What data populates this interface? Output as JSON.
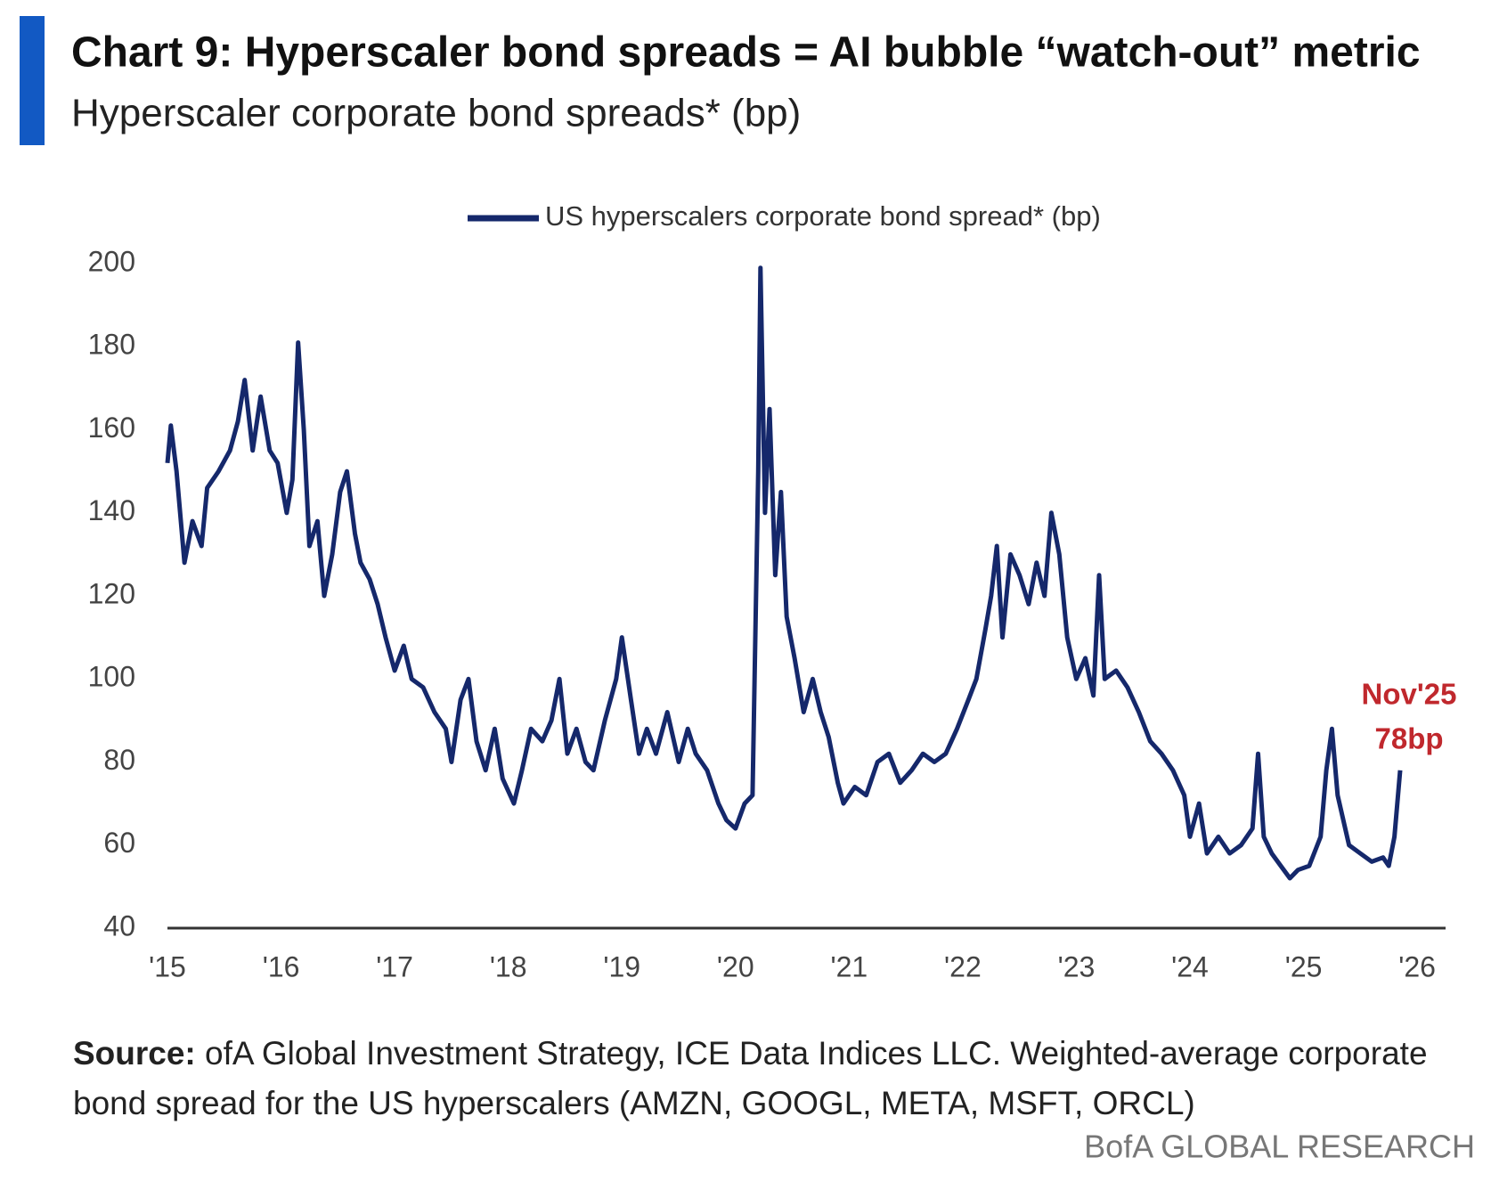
{
  "chart_data": {
    "type": "line",
    "title": "Chart 9: Hyperscaler bond spreads = AI bubble “watch-out” metric",
    "subtitle": "Hyperscaler corporate bond spreads* (bp)",
    "source_label": "Source:",
    "source": "ofA Global Investment Strategy, ICE Data Indices LLC. Weighted-average corporate bond spread for the US hyperscalers (AMZN, GOOGL, META, MSFT, ORCL)",
    "branding": "BofA GLOBAL RESEARCH",
    "annotations": [
      "Nov'25",
      "78bp"
    ],
    "annotation_color": "#c0282d",
    "legend": "top",
    "grid": false,
    "xlim": [
      2015,
      2026.25
    ],
    "xticks": [
      {
        "value": 2015,
        "label": "'15"
      },
      {
        "value": 2016,
        "label": "'16"
      },
      {
        "value": 2017,
        "label": "'17"
      },
      {
        "value": 2018,
        "label": "'18"
      },
      {
        "value": 2019,
        "label": "'19"
      },
      {
        "value": 2020,
        "label": "'20"
      },
      {
        "value": 2021,
        "label": "'21"
      },
      {
        "value": 2022,
        "label": "'22"
      },
      {
        "value": 2023,
        "label": "'23"
      },
      {
        "value": 2024,
        "label": "'24"
      },
      {
        "value": 2025,
        "label": "'25"
      },
      {
        "value": 2026,
        "label": "'26"
      }
    ],
    "ylim": [
      40,
      200
    ],
    "yticks": [
      40,
      60,
      80,
      100,
      120,
      140,
      160,
      180,
      200
    ],
    "x": [
      2015.0,
      2015.03,
      2015.08,
      2015.15,
      2015.22,
      2015.3,
      2015.35,
      2015.45,
      2015.55,
      2015.62,
      2015.68,
      2015.75,
      2015.82,
      2015.9,
      2015.97,
      2016.05,
      2016.1,
      2016.15,
      2016.2,
      2016.25,
      2016.32,
      2016.38,
      2016.45,
      2016.52,
      2016.58,
      2016.65,
      2016.7,
      2016.78,
      2016.85,
      2016.92,
      2017.0,
      2017.08,
      2017.15,
      2017.25,
      2017.35,
      2017.45,
      2017.5,
      2017.58,
      2017.65,
      2017.72,
      2017.8,
      2017.88,
      2017.95,
      2018.05,
      2018.12,
      2018.2,
      2018.3,
      2018.38,
      2018.45,
      2018.52,
      2018.6,
      2018.68,
      2018.75,
      2018.85,
      2018.95,
      2019.0,
      2019.08,
      2019.15,
      2019.22,
      2019.3,
      2019.4,
      2019.5,
      2019.58,
      2019.65,
      2019.75,
      2019.85,
      2019.92,
      2020.0,
      2020.08,
      2020.15,
      2020.2,
      2020.22,
      2020.26,
      2020.3,
      2020.35,
      2020.4,
      2020.45,
      2020.52,
      2020.6,
      2020.68,
      2020.75,
      2020.82,
      2020.9,
      2020.95,
      2021.05,
      2021.15,
      2021.25,
      2021.35,
      2021.45,
      2021.55,
      2021.65,
      2021.75,
      2021.85,
      2021.95,
      2022.05,
      2022.12,
      2022.2,
      2022.25,
      2022.3,
      2022.35,
      2022.42,
      2022.5,
      2022.58,
      2022.65,
      2022.72,
      2022.78,
      2022.85,
      2022.92,
      2023.0,
      2023.08,
      2023.15,
      2023.2,
      2023.25,
      2023.35,
      2023.45,
      2023.55,
      2023.65,
      2023.75,
      2023.85,
      2023.95,
      2024.0,
      2024.08,
      2024.15,
      2024.25,
      2024.35,
      2024.45,
      2024.55,
      2024.6,
      2024.65,
      2024.72,
      2024.8,
      2024.88,
      2024.95,
      2025.05,
      2025.15,
      2025.2,
      2025.25,
      2025.3,
      2025.4,
      2025.5,
      2025.6,
      2025.7,
      2025.75,
      2025.8,
      2025.85
    ],
    "series": [
      {
        "name": "US hyperscalers corporate bond spread* (bp)",
        "color": "#15286b",
        "values": [
          152,
          161,
          150,
          128,
          138,
          132,
          146,
          150,
          155,
          162,
          172,
          155,
          168,
          155,
          152,
          140,
          148,
          181,
          160,
          132,
          138,
          120,
          130,
          145,
          150,
          135,
          128,
          124,
          118,
          110,
          102,
          108,
          100,
          98,
          92,
          88,
          80,
          95,
          100,
          85,
          78,
          88,
          76,
          70,
          78,
          88,
          85,
          90,
          100,
          82,
          88,
          80,
          78,
          90,
          100,
          110,
          95,
          82,
          88,
          82,
          92,
          80,
          88,
          82,
          78,
          70,
          66,
          64,
          70,
          72,
          150,
          199,
          140,
          165,
          125,
          145,
          115,
          105,
          92,
          100,
          92,
          86,
          75,
          70,
          74,
          72,
          80,
          82,
          75,
          78,
          82,
          80,
          82,
          88,
          95,
          100,
          112,
          120,
          132,
          110,
          130,
          125,
          118,
          128,
          120,
          140,
          130,
          110,
          100,
          105,
          96,
          125,
          100,
          102,
          98,
          92,
          85,
          82,
          78,
          72,
          62,
          70,
          58,
          62,
          58,
          60,
          64,
          82,
          62,
          58,
          55,
          52,
          54,
          55,
          62,
          78,
          88,
          72,
          60,
          58,
          56,
          57,
          55,
          62,
          78
        ]
      }
    ]
  }
}
